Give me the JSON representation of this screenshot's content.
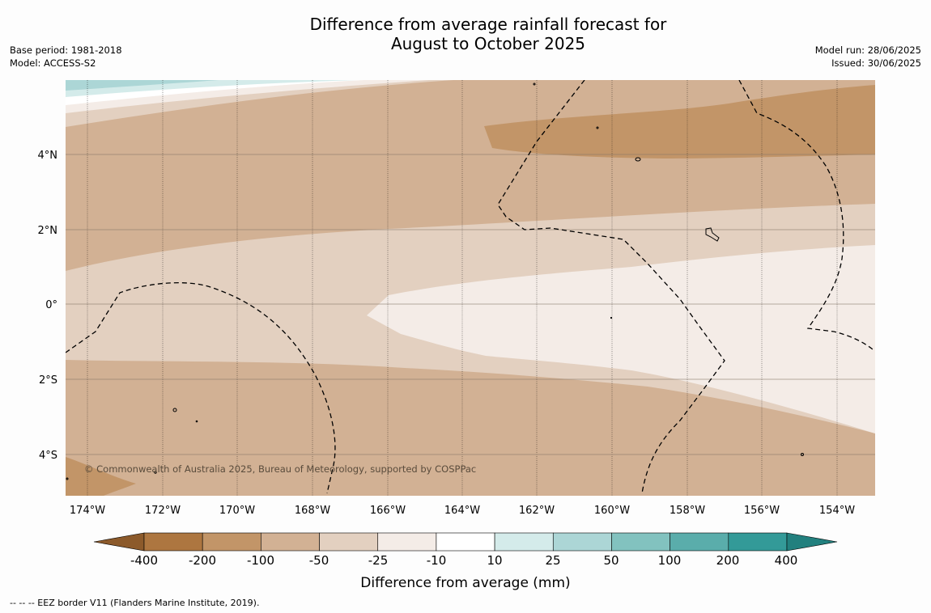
{
  "title": {
    "line1": "Difference from average rainfall forecast for",
    "line2": "August to October 2025"
  },
  "meta_left": {
    "base_period": "Base period: 1981-2018",
    "model": "Model: ACCESS-S2"
  },
  "meta_right": {
    "model_run": "Model run: 28/06/2025",
    "issued": "Issued: 30/06/2025"
  },
  "map": {
    "lon_labels": [
      "174°W",
      "172°W",
      "170°W",
      "168°W",
      "166°W",
      "164°W",
      "162°W",
      "160°W",
      "158°W",
      "156°W",
      "154°W"
    ],
    "lat_labels": [
      "4°N",
      "2°N",
      "0°",
      "2°S",
      "4°S"
    ],
    "copyright": "© Commonwealth of Australia 2025, Bureau of Meteorology, supported by COSPPac"
  },
  "colorbar": {
    "tick_labels": [
      "-400",
      "-200",
      "-100",
      "-50",
      "-25",
      "-10",
      "10",
      "25",
      "50",
      "100",
      "200",
      "400"
    ],
    "label": "Difference from average (mm)",
    "colors": [
      "#8c5a2b",
      "#ad7640",
      "#c29568",
      "#d2b194",
      "#e3d0c0",
      "#f4ece7",
      "#ffffff",
      "#d4ebea",
      "#acd6d6",
      "#82c2bf",
      "#5aadab",
      "#339a98",
      "#22807e"
    ]
  },
  "footer": "--  --  -- EEZ border V11 (Flanders Marine Institute, 2019)."
}
